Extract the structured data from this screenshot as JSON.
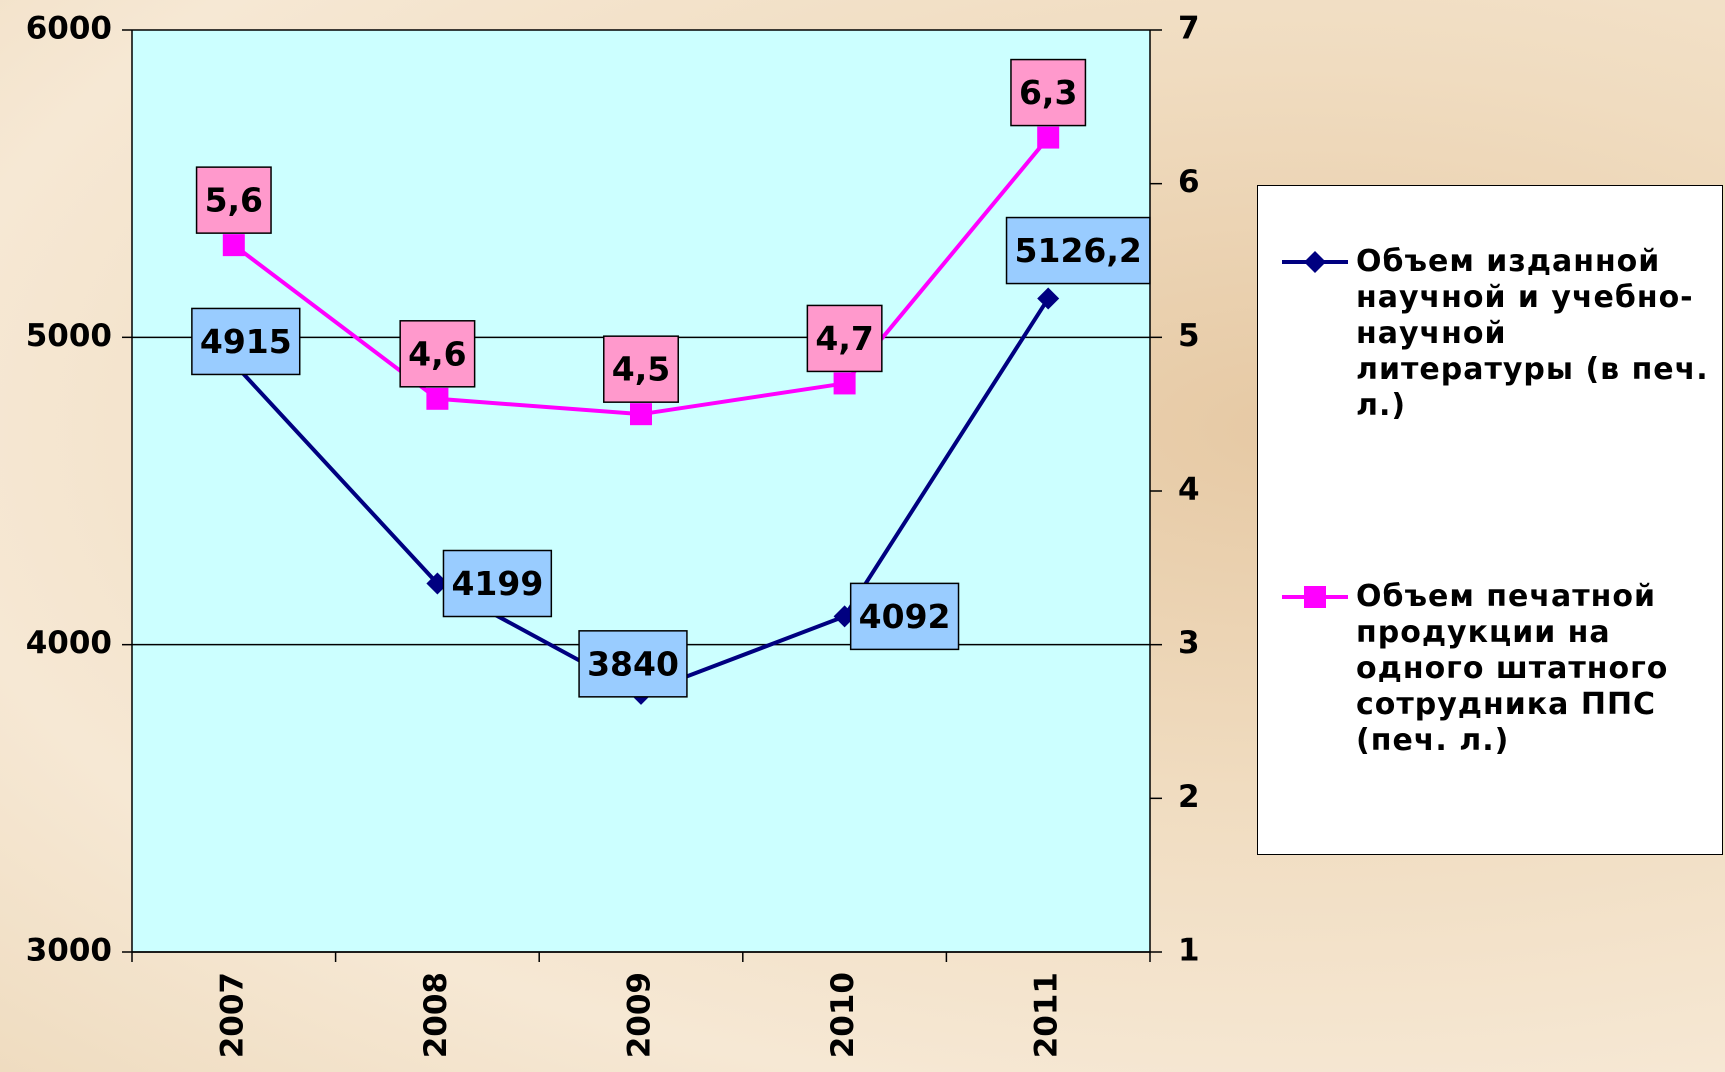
{
  "chart_data": {
    "type": "line",
    "categories": [
      "2007",
      "2008",
      "2009",
      "2010",
      "2011"
    ],
    "series": [
      {
        "name": "Объем изданной научной и учебно-научной литературы (в печ. л.)",
        "color": "#000080",
        "marker": "diamond",
        "label_color": "#99ccff",
        "values": [
          4915,
          4199,
          3840,
          4092,
          5126.2
        ],
        "value_labels": [
          "4915",
          "4199",
          "3840",
          "4092",
          "5126,2"
        ]
      },
      {
        "name": "Объем печатной продукции на одного штатного сотрудника ППС (печ. л.)",
        "color": "#ff00ff",
        "marker": "square",
        "label_color": "#ff99cc",
        "axis": "y2",
        "values": [
          5.6,
          4.6,
          4.5,
          4.7,
          6.3
        ],
        "value_labels": [
          "5,6",
          "4,6",
          "4,5",
          "4,7",
          "6,3"
        ]
      }
    ],
    "ylim": [
      3000,
      6000
    ],
    "yticks": [
      3000,
      4000,
      5000,
      6000
    ],
    "y2lim": [
      1,
      7
    ],
    "y2ticks": [
      1,
      2,
      3,
      4,
      5,
      6,
      7
    ],
    "grid": true,
    "plot_color": "#ccffff"
  }
}
